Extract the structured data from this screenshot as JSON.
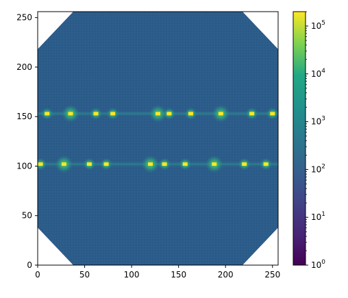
{
  "chart_data": {
    "type": "heatmap",
    "title": "",
    "xlabel": "",
    "ylabel": "",
    "xlim": [
      0,
      256
    ],
    "ylim": [
      0,
      256
    ],
    "x_ticks": [
      "0",
      "50",
      "100",
      "150",
      "200",
      "250"
    ],
    "y_ticks": [
      "0",
      "50",
      "100",
      "150",
      "200",
      "250"
    ],
    "colormap": "viridis",
    "colorbar": {
      "scale": "log",
      "range": [
        1,
        200000
      ],
      "tick_values": [
        1,
        10,
        100,
        1000,
        10000,
        100000
      ],
      "tick_bases": [
        "10",
        "10",
        "10",
        "10",
        "10",
        "10"
      ],
      "tick_exponents": [
        "0",
        "1",
        "2",
        "3",
        "4",
        "5"
      ]
    },
    "background_level": 100,
    "aperture": "octagon",
    "rows": [
      {
        "y": 153,
        "spot_x": [
          10,
          35,
          62,
          80,
          128,
          140,
          163,
          195,
          228,
          250
        ]
      },
      {
        "y": 102,
        "spot_x": [
          3,
          28,
          55,
          73,
          120,
          135,
          157,
          188,
          220,
          243
        ]
      }
    ],
    "colors": {
      "background_teal": "#2c5c8a",
      "outside": "#ffffff",
      "edge_purple": "#440154",
      "spot_core": "#fde725",
      "spot_halo": "#35b779"
    }
  }
}
